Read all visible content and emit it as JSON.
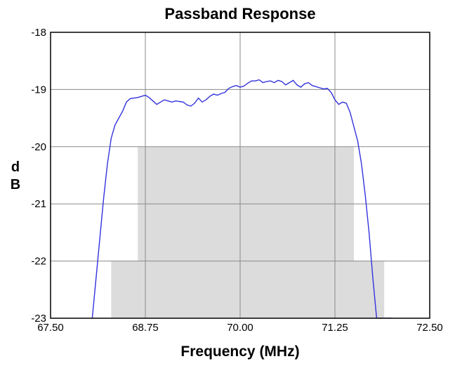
{
  "chart_data": {
    "type": "line",
    "title": "Passband Response",
    "xlabel": "Frequency (MHz)",
    "ylabel_lines": [
      "d",
      "B"
    ],
    "xlim": [
      67.5,
      72.5
    ],
    "ylim": [
      -23,
      -18
    ],
    "x_ticks": [
      67.5,
      68.75,
      70.0,
      71.25,
      72.5
    ],
    "x_tick_labels": [
      "67.50",
      "68.75",
      "70.00",
      "71.25",
      "72.50"
    ],
    "y_ticks": [
      -18,
      -19,
      -20,
      -21,
      -22,
      -23
    ],
    "y_tick_labels": [
      "-18",
      "-19",
      "-20",
      "-21",
      "-22",
      "-23"
    ],
    "grid": true,
    "legend": "none",
    "mask_regions": [
      {
        "x": [
          68.3,
          71.9
        ],
        "y": [
          -23,
          -22
        ],
        "color": "#dcdcdc"
      },
      {
        "x": [
          68.65,
          71.5
        ],
        "y": [
          -23,
          -20
        ],
        "color": "#dcdcdc"
      }
    ],
    "series": [
      {
        "color": "#3333dd",
        "x": [
          68.05,
          68.1,
          68.15,
          68.2,
          68.25,
          68.3,
          68.35,
          68.4,
          68.45,
          68.5,
          68.55,
          68.6,
          68.65,
          68.7,
          68.75,
          68.8,
          68.85,
          68.9,
          68.95,
          69.0,
          69.05,
          69.1,
          69.15,
          69.2,
          69.25,
          69.3,
          69.35,
          69.4,
          69.45,
          69.5,
          69.55,
          69.6,
          69.65,
          69.7,
          69.75,
          69.8,
          69.85,
          69.9,
          69.95,
          70.0,
          70.05,
          70.1,
          70.15,
          70.2,
          70.25,
          70.3,
          70.35,
          70.4,
          70.45,
          70.5,
          70.55,
          70.6,
          70.65,
          70.7,
          70.75,
          70.8,
          70.85,
          70.9,
          70.95,
          71.0,
          71.05,
          71.1,
          71.15,
          71.2,
          71.25,
          71.3,
          71.35,
          71.4,
          71.45,
          71.5,
          71.55,
          71.6,
          71.65,
          71.7,
          71.75,
          71.8,
          71.85,
          71.9,
          71.95,
          72.0
        ],
        "values": [
          -23.0,
          -22.3,
          -21.6,
          -20.9,
          -20.3,
          -19.85,
          -19.62,
          -19.5,
          -19.38,
          -19.22,
          -19.16,
          -19.15,
          -19.14,
          -19.12,
          -19.1,
          -19.14,
          -19.2,
          -19.26,
          -19.22,
          -19.18,
          -19.2,
          -19.22,
          -19.2,
          -19.21,
          -19.22,
          -19.27,
          -19.29,
          -19.24,
          -19.15,
          -19.22,
          -19.18,
          -19.12,
          -19.08,
          -19.1,
          -19.07,
          -19.05,
          -18.98,
          -18.95,
          -18.93,
          -18.96,
          -18.94,
          -18.89,
          -18.85,
          -18.85,
          -18.83,
          -18.88,
          -18.86,
          -18.85,
          -18.88,
          -18.84,
          -18.86,
          -18.92,
          -18.88,
          -18.84,
          -18.92,
          -18.96,
          -18.9,
          -18.88,
          -18.93,
          -18.95,
          -18.97,
          -18.99,
          -18.98,
          -19.05,
          -19.18,
          -19.26,
          -19.22,
          -19.24,
          -19.4,
          -19.65,
          -19.9,
          -20.3,
          -20.85,
          -21.5,
          -22.3,
          -23.0,
          -23.0,
          -23.0,
          -23.0,
          -23.0
        ]
      }
    ]
  }
}
